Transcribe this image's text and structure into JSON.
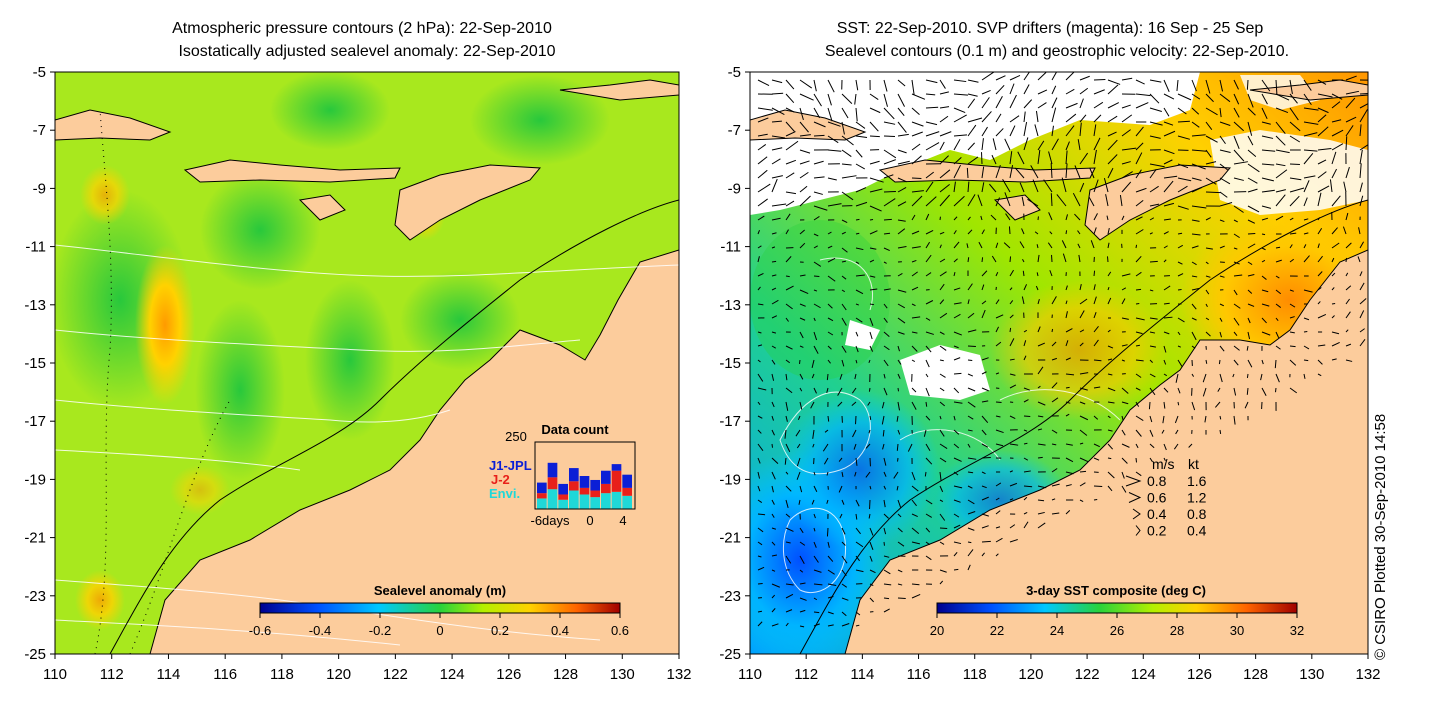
{
  "left_panel": {
    "title_line1": "Atmospheric pressure contours (2 hPa): 22-Sep-2010",
    "title_line2": "Isostatically adjusted sealevel anomaly: 22-Sep-2010",
    "y_ticks": [
      "-5",
      "-7",
      "-9",
      "-11",
      "-13",
      "-15",
      "-17",
      "-19",
      "-21",
      "-23",
      "-25"
    ],
    "x_ticks": [
      "110",
      "112",
      "114",
      "116",
      "118",
      "120",
      "122",
      "124",
      "126",
      "128",
      "130",
      "132"
    ],
    "colorbar": {
      "title": "Sealevel anomaly (m)",
      "ticks": [
        "-0.6",
        "-0.4",
        "-0.2",
        "0",
        "0.2",
        "0.4",
        "0.6"
      ]
    },
    "data_count_inset": {
      "title": "Data count",
      "y_max_label": "250",
      "x_labels": [
        "-6days",
        "0",
        "4"
      ],
      "legend": [
        {
          "label": "J1-JPL",
          "color": "#0b1fd6"
        },
        {
          "label": "J-2",
          "color": "#e8201a"
        },
        {
          "label": "Envi.",
          "color": "#1fd8d8"
        }
      ],
      "bars": [
        {
          "envi": 40,
          "j2": 20,
          "j1": 40
        },
        {
          "envi": 75,
          "j2": 45,
          "j1": 55
        },
        {
          "envi": 35,
          "j2": 20,
          "j1": 40
        },
        {
          "envi": 70,
          "j2": 35,
          "j1": 50
        },
        {
          "envi": 55,
          "j2": 25,
          "j1": 45
        },
        {
          "envi": 45,
          "j2": 25,
          "j1": 40
        },
        {
          "envi": 60,
          "j2": 35,
          "j1": 50
        },
        {
          "envi": 65,
          "j2": 80,
          "j1": 25
        },
        {
          "envi": 50,
          "j2": 30,
          "j1": 50
        }
      ]
    }
  },
  "right_panel": {
    "title_line1": "SST: 22-Sep-2010. SVP drifters (magenta): 16 Sep - 25 Sep",
    "title_line2": "Sealevel contours (0.1 m) and geostrophic velocity: 22-Sep-2010.",
    "y_ticks": [
      "-5",
      "-7",
      "-9",
      "-11",
      "-13",
      "-15",
      "-17",
      "-19",
      "-21",
      "-23",
      "-25"
    ],
    "x_ticks": [
      "110",
      "112",
      "114",
      "116",
      "118",
      "120",
      "122",
      "124",
      "126",
      "128",
      "130",
      "132"
    ],
    "colorbar": {
      "title": "3-day SST composite (deg C)",
      "ticks": [
        "20",
        "22",
        "24",
        "26",
        "28",
        "30",
        "32"
      ]
    },
    "velocity_legend": {
      "header_ms": "m/s",
      "header_kt": "kt",
      "rows": [
        {
          "ms": "0.8",
          "kt": "1.6"
        },
        {
          "ms": "0.6",
          "kt": "1.2"
        },
        {
          "ms": "0.4",
          "kt": "0.8"
        },
        {
          "ms": "0.2",
          "kt": "0.4"
        }
      ]
    }
  },
  "credit": "© CSIRO Plotted 30-Sep-2010 14:58"
}
